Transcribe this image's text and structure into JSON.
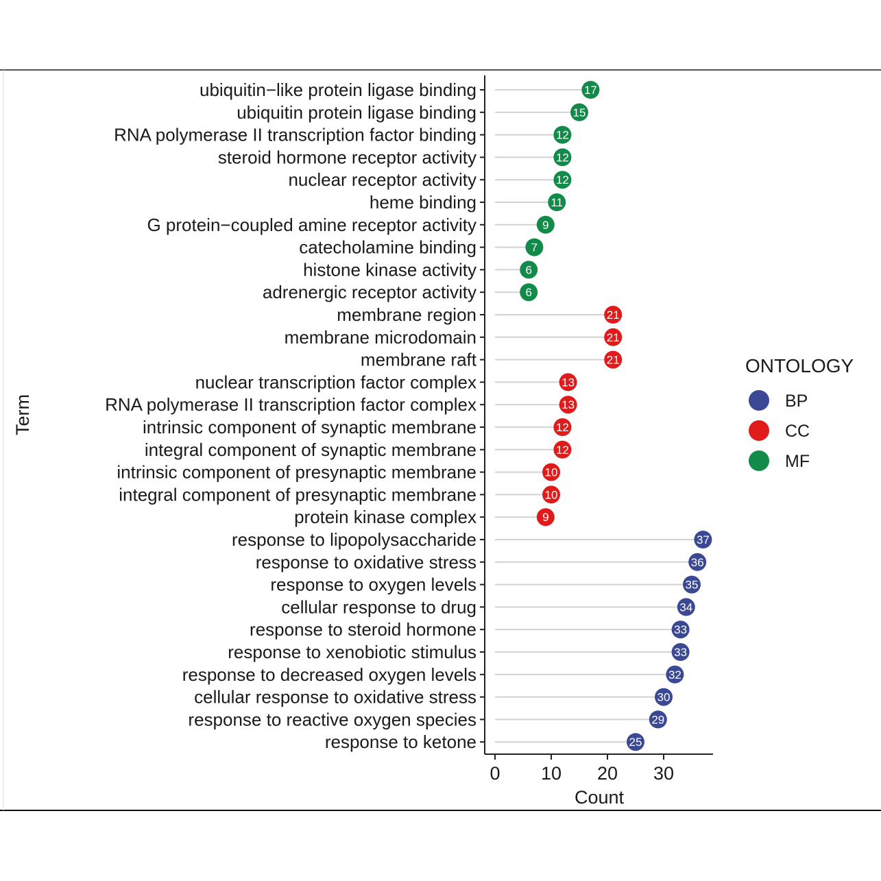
{
  "chart_data": {
    "type": "scatter",
    "xlabel": "Count",
    "ylabel": "Term",
    "xlim": [
      0,
      38
    ],
    "xticks": [
      0,
      10,
      20,
      30
    ],
    "grid": false,
    "legend": {
      "title": "ONTOLOGY",
      "placement": "right",
      "entries": [
        {
          "name": "BP",
          "color": "#3b4994"
        },
        {
          "name": "CC",
          "color": "#e01b1b"
        },
        {
          "name": "MF",
          "color": "#128a4a"
        }
      ]
    },
    "points": [
      {
        "term": "ubiquitin−like protein ligase binding",
        "count": 17,
        "ontology": "MF"
      },
      {
        "term": "ubiquitin protein ligase binding",
        "count": 15,
        "ontology": "MF"
      },
      {
        "term": "RNA polymerase II transcription factor binding",
        "count": 12,
        "ontology": "MF"
      },
      {
        "term": "steroid hormone receptor activity",
        "count": 12,
        "ontology": "MF"
      },
      {
        "term": "nuclear receptor activity",
        "count": 12,
        "ontology": "MF"
      },
      {
        "term": "heme binding",
        "count": 11,
        "ontology": "MF"
      },
      {
        "term": "G protein−coupled amine receptor activity",
        "count": 9,
        "ontology": "MF"
      },
      {
        "term": "catecholamine binding",
        "count": 7,
        "ontology": "MF"
      },
      {
        "term": "histone kinase activity",
        "count": 6,
        "ontology": "MF"
      },
      {
        "term": "adrenergic receptor activity",
        "count": 6,
        "ontology": "MF"
      },
      {
        "term": "membrane region",
        "count": 21,
        "ontology": "CC"
      },
      {
        "term": "membrane microdomain",
        "count": 21,
        "ontology": "CC"
      },
      {
        "term": "membrane raft",
        "count": 21,
        "ontology": "CC"
      },
      {
        "term": "nuclear transcription factor complex",
        "count": 13,
        "ontology": "CC"
      },
      {
        "term": "RNA polymerase II transcription factor complex",
        "count": 13,
        "ontology": "CC"
      },
      {
        "term": "intrinsic component of synaptic membrane",
        "count": 12,
        "ontology": "CC"
      },
      {
        "term": "integral component of synaptic membrane",
        "count": 12,
        "ontology": "CC"
      },
      {
        "term": "intrinsic component of presynaptic membrane",
        "count": 10,
        "ontology": "CC"
      },
      {
        "term": "integral component of presynaptic membrane",
        "count": 10,
        "ontology": "CC"
      },
      {
        "term": "protein kinase complex",
        "count": 9,
        "ontology": "CC"
      },
      {
        "term": "response to lipopolysaccharide",
        "count": 37,
        "ontology": "BP"
      },
      {
        "term": "response to oxidative stress",
        "count": 36,
        "ontology": "BP"
      },
      {
        "term": "response to oxygen levels",
        "count": 35,
        "ontology": "BP"
      },
      {
        "term": "cellular response to drug",
        "count": 34,
        "ontology": "BP"
      },
      {
        "term": "response to steroid hormone",
        "count": 33,
        "ontology": "BP"
      },
      {
        "term": "response to xenobiotic stimulus",
        "count": 33,
        "ontology": "BP"
      },
      {
        "term": "response to decreased oxygen levels",
        "count": 32,
        "ontology": "BP"
      },
      {
        "term": "cellular response to oxidative stress",
        "count": 30,
        "ontology": "BP"
      },
      {
        "term": "response to reactive oxygen species",
        "count": 29,
        "ontology": "BP"
      },
      {
        "term": "response to ketone",
        "count": 25,
        "ontology": "BP"
      }
    ]
  }
}
